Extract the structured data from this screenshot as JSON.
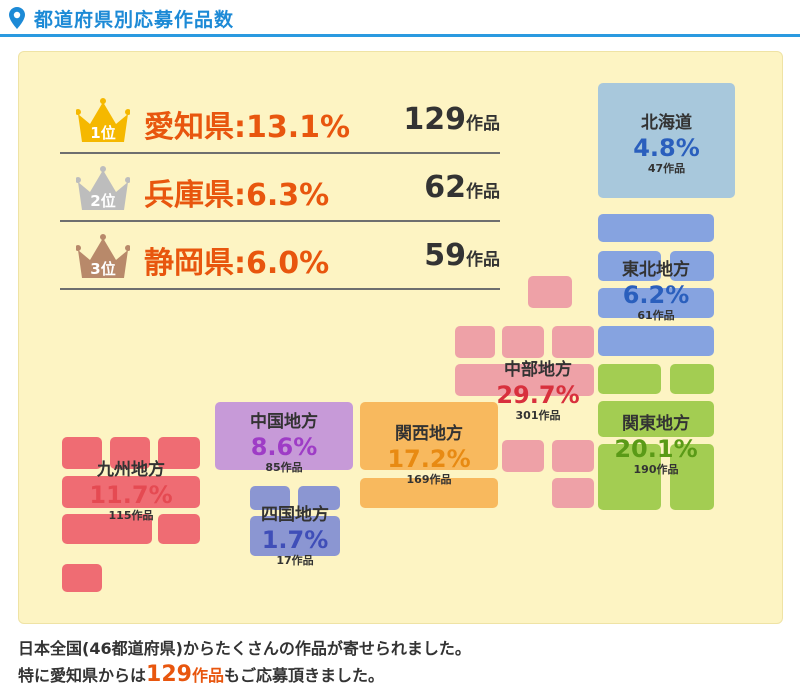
{
  "header": {
    "title": "都道府県別応募作品数",
    "icon": "location-pin-icon",
    "color": "#1d8ad6"
  },
  "chart_data": {
    "type": "choropleth-map",
    "title": "都道府県別応募作品数",
    "regions": [
      {
        "name": "北海道",
        "percent": "4.8%",
        "count": "47作品",
        "value": 4.8,
        "works": 47,
        "color": "#a8c8dc",
        "textColor": "#2a5fbd"
      },
      {
        "name": "東北地方",
        "percent": "6.2%",
        "count": "61作品",
        "value": 6.2,
        "works": 61,
        "color": "#86a3e0",
        "textColor": "#2a5fbd"
      },
      {
        "name": "関東地方",
        "percent": "20.1%",
        "count": "190作品",
        "value": 20.1,
        "works": 190,
        "color": "#a3cd52",
        "textColor": "#5a9a17"
      },
      {
        "name": "中部地方",
        "percent": "29.7%",
        "count": "301作品",
        "value": 29.7,
        "works": 301,
        "color": "#eea1a7",
        "textColor": "#d8303d"
      },
      {
        "name": "関西地方",
        "percent": "17.2%",
        "count": "169作品",
        "value": 17.2,
        "works": 169,
        "color": "#f8b95e",
        "textColor": "#e88a12"
      },
      {
        "name": "中国地方",
        "percent": "8.6%",
        "count": "85作品",
        "value": 8.6,
        "works": 85,
        "color": "#c79ad8",
        "textColor": "#9e3cc6"
      },
      {
        "name": "四国地方",
        "percent": "1.7%",
        "count": "17作品",
        "value": 1.7,
        "works": 17,
        "color": "#8b96d2",
        "textColor": "#3f4eb8"
      },
      {
        "name": "九州地方",
        "percent": "11.7%",
        "count": "115作品",
        "value": 11.7,
        "works": 115,
        "color": "#ef6c73",
        "textColor": "#e54a52"
      }
    ],
    "ranking": [
      {
        "rank": "1位",
        "text": "愛知県:13.1%",
        "count": "129",
        "unit": "作品",
        "crown": "#f5b800"
      },
      {
        "rank": "2位",
        "text": "兵庫県:6.3%",
        "count": "62",
        "unit": "作品",
        "crown": "#bdbdbd"
      },
      {
        "rank": "3位",
        "text": "静岡県:6.0%",
        "count": "59",
        "unit": "作品",
        "crown": "#b8896a"
      }
    ]
  },
  "footer": {
    "line1": "日本全国(46都道府県)からたくさんの作品が寄せられました。",
    "line2_pre": "特に愛知県からは",
    "line2_num": "129",
    "line2_unit": "作品",
    "line2_post": "もご応募頂きました。"
  }
}
